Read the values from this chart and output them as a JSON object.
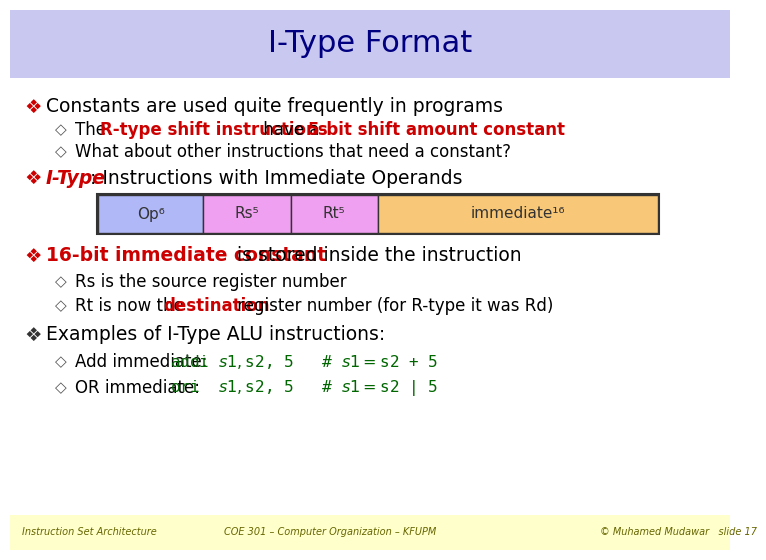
{
  "title": "I-Type Format",
  "title_bg": "#c8c8f0",
  "slide_bg": "#ffffff",
  "footer_bg": "#ffffcc",
  "title_color": "#000080",
  "body_black": "#000000",
  "red_color": "#cc0000",
  "green_code": "#006600",
  "bullet_black": "#333333",
  "sub_diamond_color": "#555555",
  "bullet1": "Constants are used quite frequently in programs",
  "sub1a_pre": "The ",
  "sub1a_red": "R-type shift instructions",
  "sub1a_mid": " have a ",
  "sub1a_red2": "5-bit shift amount constant",
  "sub1b": "What about other instructions that need a constant?",
  "bullet2_red": "I-Type",
  "bullet2_rest": ": Instructions with Immediate Operands",
  "table_labels": [
    "Op⁶",
    "Rs⁵",
    "Rt⁵",
    "immediate¹⁶"
  ],
  "table_colors": [
    "#b0b8f8",
    "#f0a0f0",
    "#f0a0f0",
    "#f8c878"
  ],
  "table_border": "#333333",
  "bullet3_red": "16-bit immediate constant",
  "bullet3_rest": " is stored inside the instruction",
  "sub3a": "Rs is the source register number",
  "sub3b_pre": "Rt is now the ",
  "sub3b_red": "destination",
  "sub3b_rest": " register number (for R-type it was Rd)",
  "bullet4": "Examples of I-Type ALU instructions:",
  "sub4a_pre": "Add immediate: ",
  "sub4a_code": "addi $s1, $s2, 5   # $s1 = $s2 + 5",
  "sub4b_pre": "OR immediate:  ",
  "sub4b_code": "ori  $s1, $s2, 5   # $s1 = $s2 | 5",
  "footer1": "Instruction Set Architecture",
  "footer2": "COE 301 – Computer Organization – KFUPM",
  "footer3": "© Muhamed Mudawar   slide 17"
}
